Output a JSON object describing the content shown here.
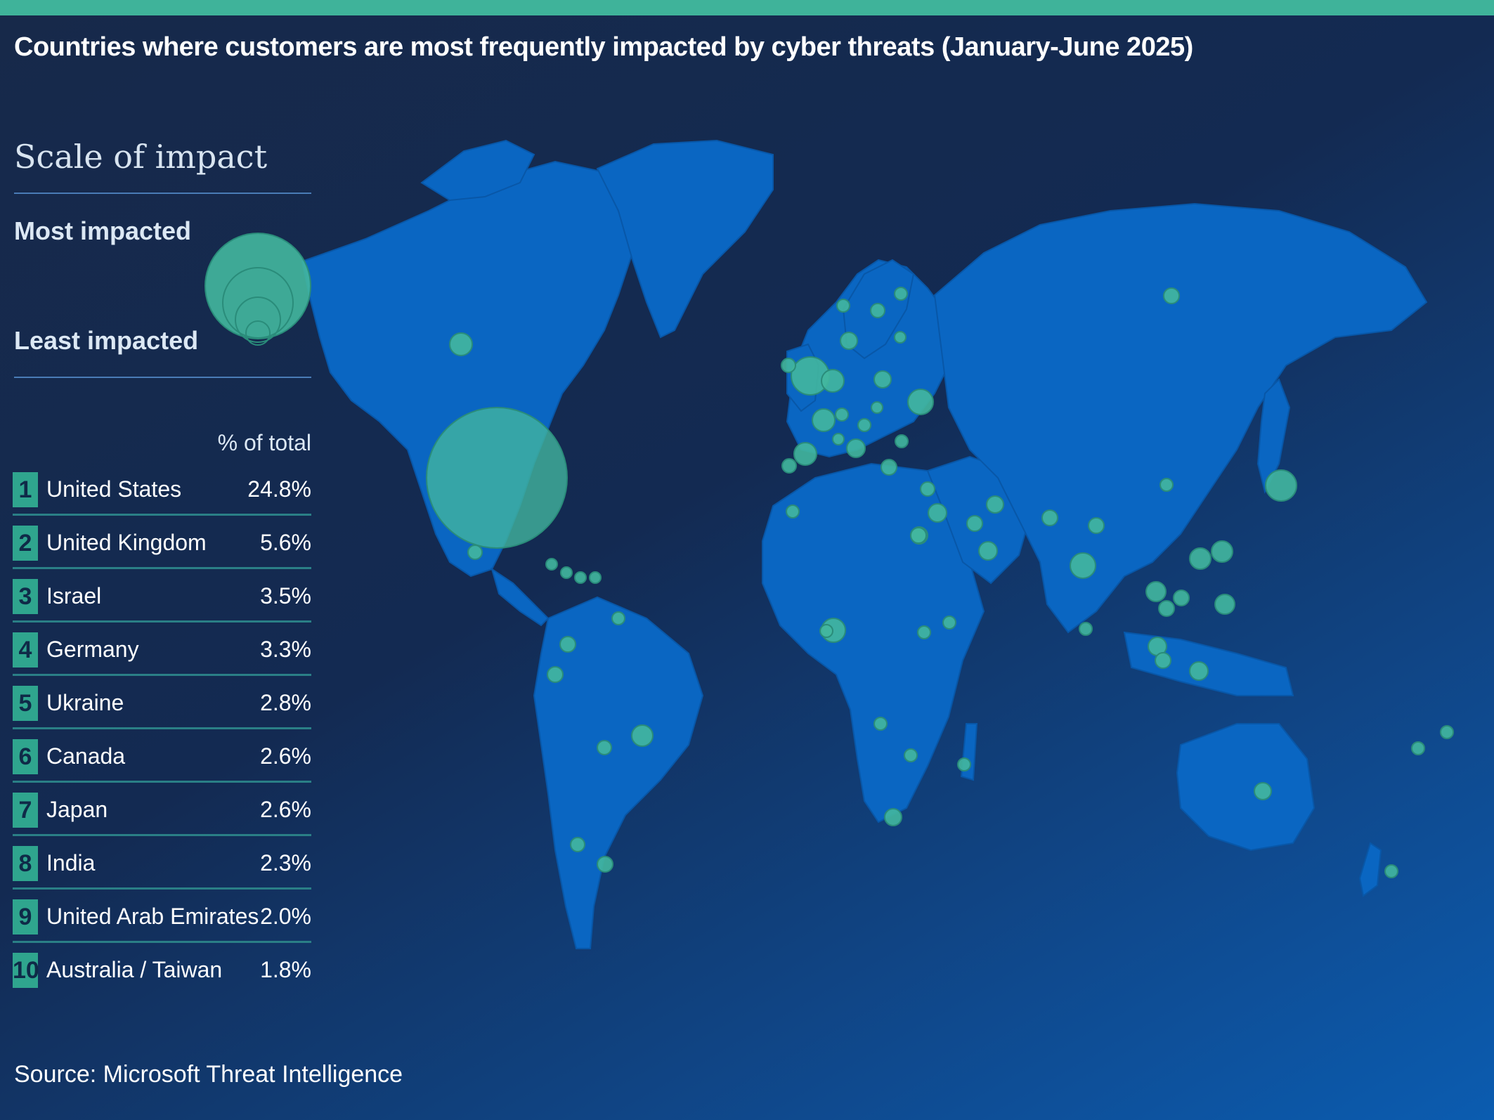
{
  "title": "Countries where customers are most frequently impacted by cyber threats  (January-June 2025)",
  "legend": {
    "heading": "Scale of impact",
    "most_label": "Most impacted",
    "least_label": "Least impacted",
    "bubble_color": "#42b79f"
  },
  "table": {
    "header": "% of total",
    "rows": [
      {
        "rank": "1",
        "country": "United States",
        "pct": "24.8%"
      },
      {
        "rank": "2",
        "country": "United Kingdom",
        "pct": "5.6%"
      },
      {
        "rank": "3",
        "country": "Israel",
        "pct": "3.5%"
      },
      {
        "rank": "4",
        "country": "Germany",
        "pct": "3.3%"
      },
      {
        "rank": "5",
        "country": "Ukraine",
        "pct": "2.8%"
      },
      {
        "rank": "6",
        "country": "Canada",
        "pct": "2.6%"
      },
      {
        "rank": "7",
        "country": "Japan",
        "pct": "2.6%"
      },
      {
        "rank": "8",
        "country": "India",
        "pct": "2.3%"
      },
      {
        "rank": "9",
        "country": "United Arab Emirates",
        "pct": "2.0%"
      },
      {
        "rank": "10",
        "country": "Australia / Taiwan",
        "pct": "1.8%"
      }
    ]
  },
  "source": "Source: Microsoft Threat Intelligence",
  "colors": {
    "background": "#17294a",
    "land": "#0a66c2",
    "accent": "#3fb39a"
  }
}
